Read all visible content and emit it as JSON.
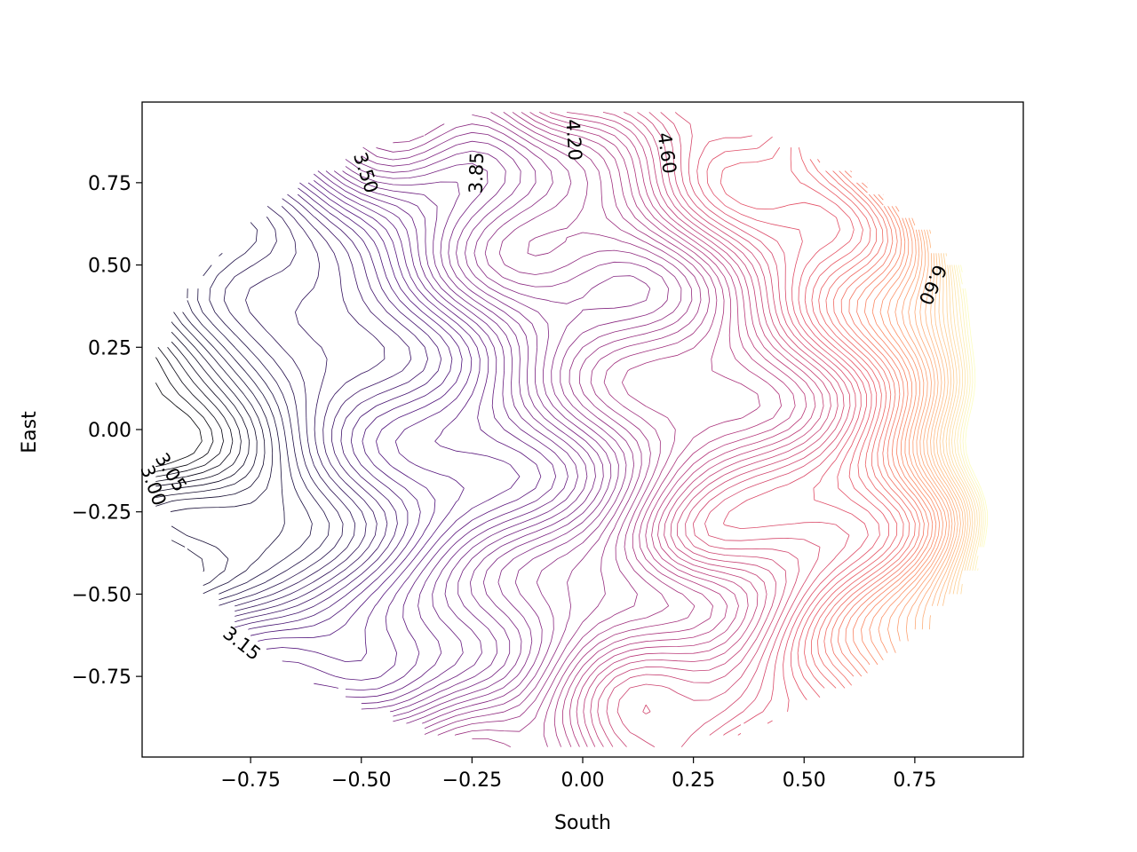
{
  "chart_data": {
    "type": "contour",
    "title": "",
    "xlabel": "South",
    "ylabel": "East",
    "xlim": [
      -0.995,
      0.995
    ],
    "ylim": [
      -0.995,
      0.995
    ],
    "xticks": [
      "−0.75",
      "−0.50",
      "−0.25",
      "0.00",
      "0.25",
      "0.50",
      "0.75"
    ],
    "xtick_values": [
      -0.75,
      -0.5,
      -0.25,
      0.0,
      0.25,
      0.5,
      0.75
    ],
    "yticks": [
      "−0.75",
      "−0.50",
      "−0.25",
      "0.00",
      "0.25",
      "0.50",
      "0.75"
    ],
    "ytick_values": [
      -0.75,
      -0.5,
      -0.25,
      0.0,
      0.25,
      0.5,
      0.75
    ],
    "colormap": "magma",
    "level_min": 3.0,
    "level_max": 7.0,
    "level_step": 0.05,
    "domain_shape": "unit disk",
    "grid": false,
    "contour_labels": [
      {
        "text": "3.50",
        "x": -0.49,
        "y": 0.78,
        "rotation": 72
      },
      {
        "text": "3.85",
        "x": -0.24,
        "y": 0.78,
        "rotation": -88
      },
      {
        "text": "4.20",
        "x": -0.02,
        "y": 0.88,
        "rotation": 86
      },
      {
        "text": "4.60",
        "x": 0.19,
        "y": 0.84,
        "rotation": 82
      },
      {
        "text": "6.60",
        "x": 0.79,
        "y": 0.44,
        "rotation": 114
      },
      {
        "text": "3.05",
        "x": -0.93,
        "y": -0.13,
        "rotation": 58
      },
      {
        "text": "3.00",
        "x": -0.97,
        "y": -0.17,
        "rotation": 70
      },
      {
        "text": "3.15",
        "x": -0.77,
        "y": -0.65,
        "rotation": 38
      }
    ]
  }
}
